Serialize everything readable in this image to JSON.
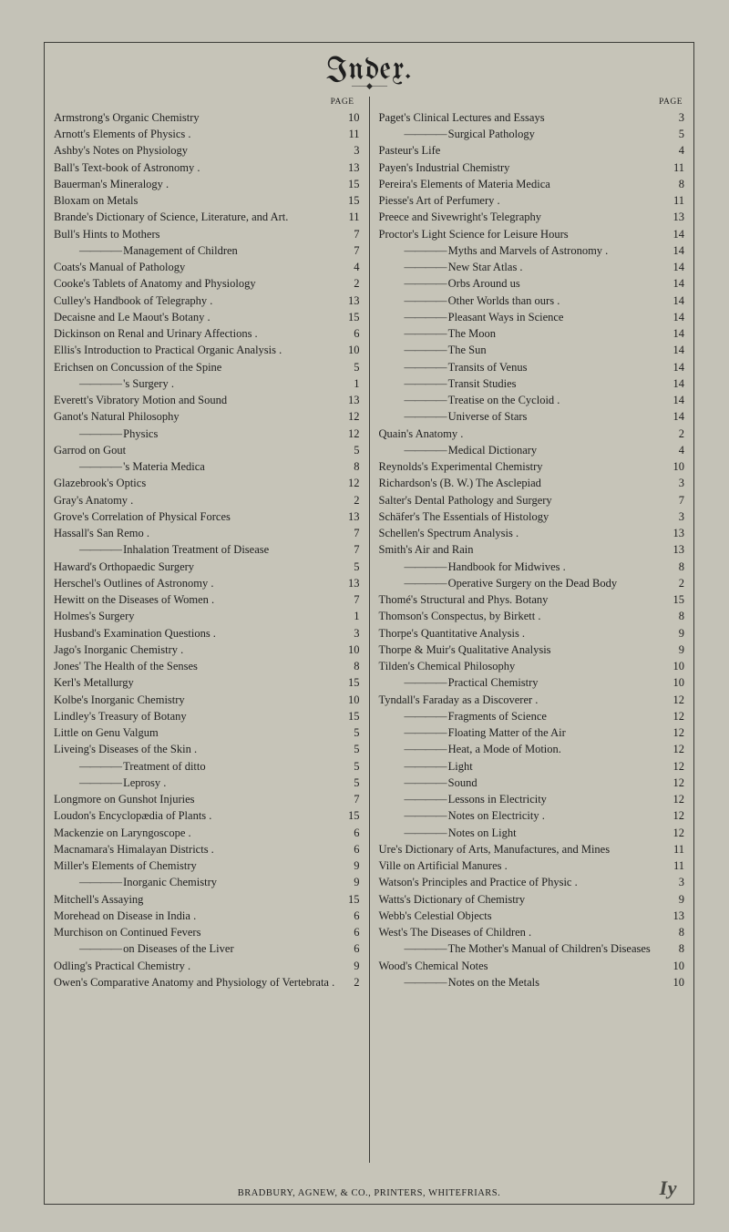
{
  "title": "Index.",
  "page_label": "PAGE",
  "footer": "BRADBURY, AGNEW, & CO., PRINTERS, WHITEFRIARS.",
  "footer_mark": "Iy",
  "left": [
    {
      "t": "Armstrong's Organic Chemistry",
      "p": "10"
    },
    {
      "t": "Arnott's Elements of Physics .",
      "p": "11"
    },
    {
      "t": "Ashby's Notes on Physiology",
      "p": "3"
    },
    {
      "t": "Ball's Text-book of Astronomy .",
      "p": "13"
    },
    {
      "t": "Bauerman's Mineralogy .",
      "p": "15"
    },
    {
      "t": "Bloxam on Metals",
      "p": "15"
    },
    {
      "t": "Brande's Dictionary of Science, Literature, and Art.",
      "p": "11"
    },
    {
      "t": "Bull's Hints to Mothers",
      "p": "7"
    },
    {
      "t": "Management of Children",
      "p": "7",
      "sub": true
    },
    {
      "t": "Coats's Manual of Pathology",
      "p": "4"
    },
    {
      "t": "Cooke's Tablets of Anatomy and Physiology",
      "p": "2"
    },
    {
      "t": "Culley's Handbook of Telegraphy .",
      "p": "13"
    },
    {
      "t": "Decaisne and Le Maout's Botany .",
      "p": "15"
    },
    {
      "t": "Dickinson on Renal and Urinary Affections .",
      "p": "6"
    },
    {
      "t": "Ellis's Introduction to Practical Organic Analysis .",
      "p": "10"
    },
    {
      "t": "Erichsen on Concussion of the Spine",
      "p": "5"
    },
    {
      "t": "'s Surgery .",
      "p": "1",
      "sub": true
    },
    {
      "t": "Everett's Vibratory Motion and Sound",
      "p": "13"
    },
    {
      "t": "Ganot's Natural Philosophy",
      "p": "12"
    },
    {
      "t": "Physics",
      "p": "12",
      "sub": true
    },
    {
      "t": "Garrod on Gout",
      "p": "5"
    },
    {
      "t": "'s Materia Medica",
      "p": "8",
      "sub": true
    },
    {
      "t": "Glazebrook's Optics",
      "p": "12"
    },
    {
      "t": "Gray's Anatomy .",
      "p": "2"
    },
    {
      "t": "Grove's Correlation of Physical Forces",
      "p": "13"
    },
    {
      "t": "Hassall's San Remo .",
      "p": "7"
    },
    {
      "t": "Inhalation Treatment of Disease",
      "p": "7",
      "sub": true
    },
    {
      "t": "Haward's Orthopaedic Surgery",
      "p": "5"
    },
    {
      "t": "Herschel's Outlines of Astronomy .",
      "p": "13"
    },
    {
      "t": "Hewitt on the Diseases of Women .",
      "p": "7"
    },
    {
      "t": "Holmes's Surgery",
      "p": "1"
    },
    {
      "t": "Husband's Examination Questions .",
      "p": "3"
    },
    {
      "t": "Jago's Inorganic Chemistry .",
      "p": "10"
    },
    {
      "t": "Jones' The Health of the Senses",
      "p": "8"
    },
    {
      "t": "Kerl's Metallurgy",
      "p": "15"
    },
    {
      "t": "Kolbe's Inorganic Chemistry",
      "p": "10"
    },
    {
      "t": "Lindley's Treasury of Botany",
      "p": "15"
    },
    {
      "t": "Little on Genu Valgum",
      "p": "5"
    },
    {
      "t": "Liveing's Diseases of the Skin .",
      "p": "5"
    },
    {
      "t": "Treatment of ditto",
      "p": "5",
      "sub": true
    },
    {
      "t": "Leprosy .",
      "p": "5",
      "sub": true
    },
    {
      "t": "Longmore on Gunshot Injuries",
      "p": "7"
    },
    {
      "t": "Loudon's Encyclopædia of Plants .",
      "p": "15"
    },
    {
      "t": "Mackenzie on Laryngoscope .",
      "p": "6"
    },
    {
      "t": "Macnamara's Himalayan Districts .",
      "p": "6"
    },
    {
      "t": "Miller's Elements of Chemistry",
      "p": "9"
    },
    {
      "t": "Inorganic Chemistry",
      "p": "9",
      "sub": true
    },
    {
      "t": "Mitchell's Assaying",
      "p": "15"
    },
    {
      "t": "Morehead on Disease in India .",
      "p": "6"
    },
    {
      "t": "Murchison on Continued Fevers",
      "p": "6"
    },
    {
      "t": "on Diseases of the Liver",
      "p": "6",
      "sub": true
    },
    {
      "t": "Odling's Practical Chemistry .",
      "p": "9"
    },
    {
      "t": "Owen's Comparative Anatomy and Physiology of Vertebrata .",
      "p": "2"
    }
  ],
  "right": [
    {
      "t": "Paget's Clinical Lectures and Essays",
      "p": "3"
    },
    {
      "t": "Surgical Pathology",
      "p": "5",
      "sub": true
    },
    {
      "t": "Pasteur's Life",
      "p": "4"
    },
    {
      "t": "Payen's Industrial Chemistry",
      "p": "11"
    },
    {
      "t": "Pereira's Elements of Materia Medica",
      "p": "8"
    },
    {
      "t": "Piesse's Art of Perfumery .",
      "p": "11"
    },
    {
      "t": "Preece and Sivewright's Telegraphy",
      "p": "13"
    },
    {
      "t": "Proctor's Light Science for Leisure Hours",
      "p": "14"
    },
    {
      "t": "Myths and Marvels of Astronomy .",
      "p": "14",
      "sub": true
    },
    {
      "t": "New Star Atlas .",
      "p": "14",
      "sub": true
    },
    {
      "t": "Orbs Around us",
      "p": "14",
      "sub": true
    },
    {
      "t": "Other Worlds than ours .",
      "p": "14",
      "sub": true
    },
    {
      "t": "Pleasant Ways in Science",
      "p": "14",
      "sub": true
    },
    {
      "t": "The Moon",
      "p": "14",
      "sub": true
    },
    {
      "t": "The Sun",
      "p": "14",
      "sub": true
    },
    {
      "t": "Transits of Venus",
      "p": "14",
      "sub": true
    },
    {
      "t": "Transit Studies",
      "p": "14",
      "sub": true
    },
    {
      "t": "Treatise on the Cycloid .",
      "p": "14",
      "sub": true
    },
    {
      "t": "Universe of Stars",
      "p": "14",
      "sub": true
    },
    {
      "t": "Quain's Anatomy .",
      "p": "2"
    },
    {
      "t": "Medical Dictionary",
      "p": "4",
      "sub": true
    },
    {
      "t": "Reynolds's Experimental Chemistry",
      "p": "10"
    },
    {
      "t": "Richardson's (B. W.) The Asclepiad",
      "p": "3"
    },
    {
      "t": "Salter's Dental Pathology and Surgery",
      "p": "7"
    },
    {
      "t": "Schäfer's The Essentials of Histology",
      "p": "3"
    },
    {
      "t": "Schellen's Spectrum Analysis .",
      "p": "13"
    },
    {
      "t": "Smith's Air and Rain",
      "p": "13"
    },
    {
      "t": "Handbook for Midwives .",
      "p": "8",
      "sub": true
    },
    {
      "t": "Operative Surgery on the Dead Body",
      "p": "2",
      "sub": true
    },
    {
      "t": "Thomé's Structural and Phys. Botany",
      "p": "15"
    },
    {
      "t": "Thomson's Conspectus, by Birkett .",
      "p": "8"
    },
    {
      "t": "Thorpe's Quantitative Analysis .",
      "p": "9"
    },
    {
      "t": "Thorpe & Muir's Qualitative Analysis",
      "p": "9"
    },
    {
      "t": "Tilden's Chemical Philosophy",
      "p": "10"
    },
    {
      "t": "Practical Chemistry",
      "p": "10",
      "sub": true
    },
    {
      "t": "Tyndall's Faraday as a Discoverer .",
      "p": "12"
    },
    {
      "t": "Fragments of Science",
      "p": "12",
      "sub": true
    },
    {
      "t": "Floating Matter of the Air",
      "p": "12",
      "sub": true
    },
    {
      "t": "Heat, a Mode of Motion.",
      "p": "12",
      "sub": true
    },
    {
      "t": "Light",
      "p": "12",
      "sub": true
    },
    {
      "t": "Sound",
      "p": "12",
      "sub": true
    },
    {
      "t": "Lessons in Electricity",
      "p": "12",
      "sub": true
    },
    {
      "t": "Notes on Electricity .",
      "p": "12",
      "sub": true
    },
    {
      "t": "Notes on Light",
      "p": "12",
      "sub": true
    },
    {
      "t": "Ure's Dictionary of Arts, Manufactures, and Mines",
      "p": "11"
    },
    {
      "t": "Ville on Artificial Manures .",
      "p": "11"
    },
    {
      "t": "Watson's Principles and Practice of Physic .",
      "p": "3"
    },
    {
      "t": "Watts's Dictionary of Chemistry",
      "p": "9"
    },
    {
      "t": "Webb's Celestial Objects",
      "p": "13"
    },
    {
      "t": "West's The Diseases of Children .",
      "p": "8"
    },
    {
      "t": "The Mother's Manual of Children's Diseases",
      "p": "8",
      "sub": true
    },
    {
      "t": "Wood's Chemical Notes",
      "p": "10"
    },
    {
      "t": "Notes on the Metals",
      "p": "10",
      "sub": true
    }
  ]
}
